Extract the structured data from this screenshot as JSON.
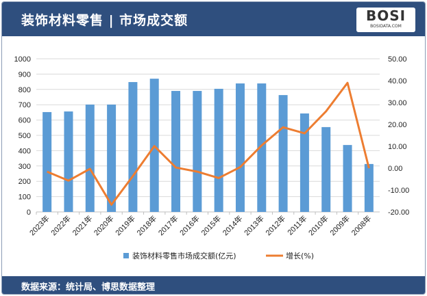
{
  "header": {
    "title": "装饰材料零售 | 市场成交额",
    "logo_text": "BOSI",
    "logo_sub": "BOSIDATA.COM"
  },
  "footer": {
    "source": "数据来源：统计局、博思数据整理"
  },
  "colors": {
    "bar": "#5b9bd5",
    "line": "#ed7d31",
    "header": "#2f4f7e"
  },
  "chart_data": {
    "type": "bar+line",
    "categories": [
      "2023年",
      "2022年",
      "2021年",
      "2020年",
      "2019年",
      "2018年",
      "2017年",
      "2016年",
      "2015年",
      "2014年",
      "2013年",
      "2012年",
      "2011年",
      "2010年",
      "2009年",
      "2008年"
    ],
    "series": [
      {
        "name": "装饰材料零售市场成交额(亿元)",
        "type": "bar",
        "axis": "left",
        "values": [
          652,
          656,
          701,
          701,
          848,
          870,
          790,
          790,
          804,
          839,
          839,
          763,
          643,
          554,
          437,
          313
        ]
      },
      {
        "name": "增长(%)",
        "type": "line",
        "axis": "right",
        "values": [
          -1.6,
          -5.7,
          -0.3,
          -16.7,
          -3.6,
          10.1,
          0.3,
          -1.6,
          -4.5,
          0.5,
          10.4,
          18.7,
          15.9,
          26.0,
          39.0,
          0.0
        ]
      }
    ],
    "left_axis": {
      "range": [
        0,
        1000
      ],
      "ticks": [
        "0",
        "100",
        "200",
        "300",
        "400",
        "500",
        "600",
        "700",
        "800",
        "900",
        "1000"
      ]
    },
    "right_axis": {
      "range": [
        -20,
        50
      ],
      "ticks": [
        "-20.00",
        "-10.00",
        "0.00",
        "10.00",
        "20.00",
        "30.00",
        "40.00",
        "50.00"
      ]
    },
    "grid": true,
    "legend": "bottom"
  }
}
